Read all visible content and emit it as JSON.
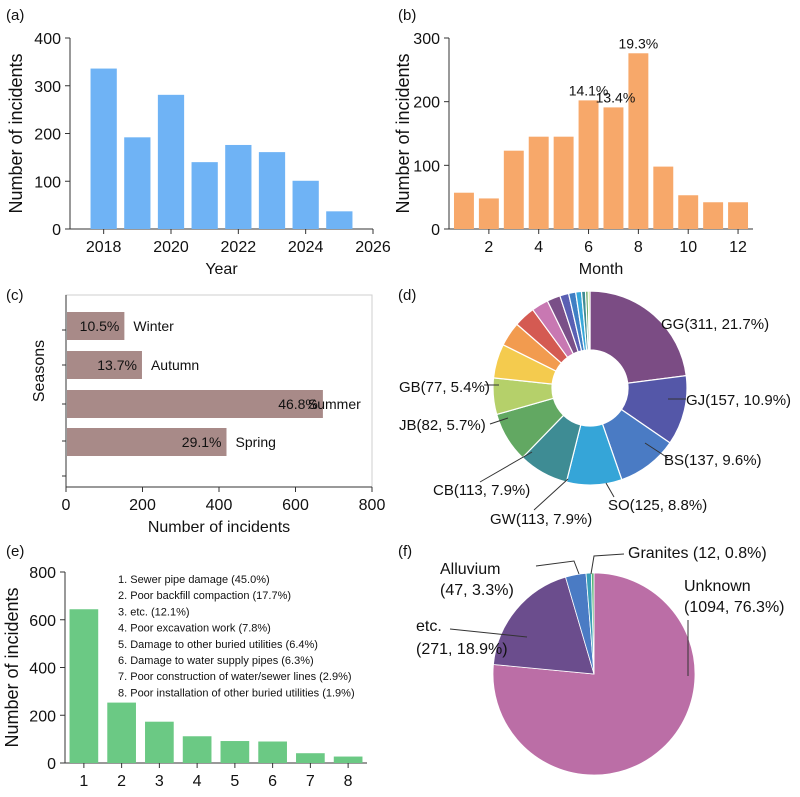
{
  "chart_data": [
    {
      "panel": "(a)",
      "type": "bar",
      "x": [
        2018,
        2019,
        2020,
        2021,
        2022,
        2023,
        2024,
        2025
      ],
      "values": [
        336,
        192,
        281,
        140,
        176,
        161,
        101,
        37
      ],
      "xlabel": "Year",
      "ylabel": "Number of incidents",
      "xlim": [
        2017,
        2026
      ],
      "ylim": [
        0,
        400
      ],
      "xticks": [
        2018,
        2020,
        2022,
        2024,
        2026
      ],
      "yticks": [
        0,
        100,
        200,
        300,
        400
      ],
      "color": "#6fb3f5"
    },
    {
      "panel": "(b)",
      "type": "bar",
      "x": [
        1,
        2,
        3,
        4,
        5,
        6,
        7,
        8,
        9,
        10,
        11,
        12
      ],
      "values": [
        57,
        48,
        123,
        145,
        145,
        202,
        191,
        276,
        98,
        53,
        42,
        42
      ],
      "data_labels": [
        {
          "month": 6,
          "label": "14.1%"
        },
        {
          "month": 7,
          "label": "13.4%"
        },
        {
          "month": 8,
          "label": "19.3%"
        }
      ],
      "xlabel": "Month",
      "ylabel": "Number of incidents",
      "xlim": [
        0.4,
        12.6
      ],
      "ylim": [
        0,
        300
      ],
      "xticks": [
        2,
        4,
        6,
        8,
        10,
        12
      ],
      "yticks": [
        0,
        100,
        200,
        300
      ],
      "color": "#f7a86a"
    },
    {
      "panel": "(c)",
      "type": "bar",
      "orientation": "horizontal",
      "categories": [
        "Winter",
        "Autumn",
        "Summer",
        "Spring"
      ],
      "values": [
        150,
        196,
        669,
        417
      ],
      "pct_labels": [
        "10.5%",
        "13.7%",
        "46.8%",
        "29.1%"
      ],
      "xlabel": "Number of incidents",
      "ylabel": "Seasons",
      "xlim": [
        0,
        800
      ],
      "xticks": [
        0,
        200,
        400,
        600,
        800
      ],
      "color": "#a88a88"
    },
    {
      "panel": "(d)",
      "type": "pie",
      "donut": true,
      "slices": [
        {
          "name": "GG",
          "value": 311,
          "label": "GG(311, 21.7%)",
          "color": "#7b4c84"
        },
        {
          "name": "GJ",
          "value": 157,
          "label": "GJ(157, 10.9%)",
          "color": "#5457a8"
        },
        {
          "name": "BS",
          "value": 137,
          "label": "BS(137, 9.6%)",
          "color": "#4a7bc4"
        },
        {
          "name": "SO",
          "value": 125,
          "label": "SO(125, 8.8%)",
          "color": "#35a5d8"
        },
        {
          "name": "GW",
          "value": 113,
          "label": "GW(113, 7.9%)",
          "color": "#3e8c94"
        },
        {
          "name": "CB",
          "value": 113,
          "label": "CB(113, 7.9%)",
          "color": "#62a862"
        },
        {
          "name": "JB",
          "value": 82,
          "label": "JB(82, 5.7%)",
          "color": "#b5d06a"
        },
        {
          "name": "GB",
          "value": 77,
          "label": "GB(77, 5.4%)",
          "color": "#f4cb4e"
        },
        {
          "name": "o1",
          "value": 55,
          "label": "",
          "color": "#f29b4f"
        },
        {
          "name": "o2",
          "value": 48,
          "label": "",
          "color": "#d45a52"
        },
        {
          "name": "o3",
          "value": 38,
          "label": "",
          "color": "#c878b2"
        },
        {
          "name": "o4",
          "value": 30,
          "label": "",
          "color": "#7a4f88"
        },
        {
          "name": "o5",
          "value": 20,
          "label": "",
          "color": "#5a5fb3"
        },
        {
          "name": "o6",
          "value": 16,
          "label": "",
          "color": "#3f7fc4"
        },
        {
          "name": "o7",
          "value": 13,
          "label": "",
          "color": "#37a8da"
        },
        {
          "name": "o8",
          "value": 9,
          "label": "",
          "color": "#3e8c94"
        },
        {
          "name": "o9",
          "value": 6,
          "label": "",
          "color": "#62a862"
        },
        {
          "name": "o10",
          "value": 4,
          "label": "",
          "color": "#b5d06a"
        }
      ]
    },
    {
      "panel": "(e)",
      "type": "bar",
      "x": [
        1,
        2,
        3,
        4,
        5,
        6,
        7,
        8
      ],
      "values": [
        644,
        253,
        173,
        112,
        92,
        90,
        41,
        27
      ],
      "legend": [
        "1. Sewer pipe damage (45.0%)",
        "2. Poor backfill compaction (17.7%)",
        "3. etc. (12.1%)",
        "4. Poor excavation work (7.8%)",
        "5. Damage to other buried utilities (6.4%)",
        "6. Damage to water supply pipes (6.3%)",
        "7. Poor construction of water/sewer lines (2.9%)",
        "8. Poor installation of other buried utilities (1.9%)"
      ],
      "ylabel": "Number of incidents",
      "ylim": [
        0,
        800
      ],
      "yticks": [
        0,
        200,
        400,
        600,
        800
      ],
      "xticks": [
        1,
        2,
        3,
        4,
        5,
        6,
        7,
        8
      ],
      "color": "#6bc984"
    },
    {
      "panel": "(f)",
      "type": "pie",
      "slices": [
        {
          "name": "Unknown",
          "value": 1094,
          "line1": "Unknown",
          "line2": "(1094, 76.3%)",
          "color": "#bb6ea6"
        },
        {
          "name": "etc.",
          "value": 271,
          "line1": "etc.",
          "line2": "(271, 18.9%)",
          "color": "#6b4d8d"
        },
        {
          "name": "Alluvium",
          "value": 47,
          "line1": "Alluvium",
          "line2": "(47, 3.3%)",
          "color": "#4a7bc4"
        },
        {
          "name": "Granites",
          "value": 12,
          "line1": "Granites (12, 0.8%)",
          "line2": "",
          "color": "#3a9db8"
        },
        {
          "name": "minor",
          "value": 6,
          "line1": "",
          "line2": "",
          "color": "#5fb57a"
        }
      ]
    }
  ]
}
